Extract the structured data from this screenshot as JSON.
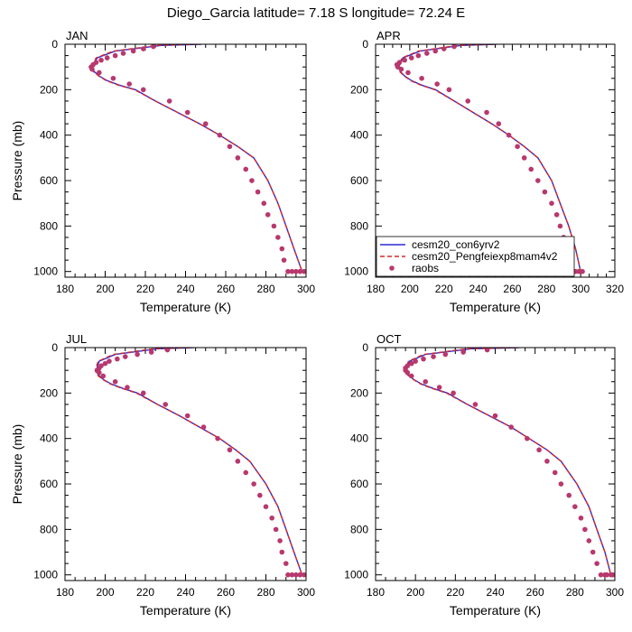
{
  "figure_title": "Diego_Garcia  latitude= 7.18 S longitude= 72.24 E",
  "colors": {
    "model1": "#2a2ad6",
    "model2": "#d62a2a",
    "obs": "#b8386e"
  },
  "chart_data": [
    {
      "type": "line",
      "panel_label": "JAN",
      "xlabel": "Temperature (K)",
      "ylabel": "Pressure (mb)",
      "xlim": [
        180,
        300
      ],
      "ylim": [
        0,
        1025
      ],
      "y_inverted": true,
      "xticks": [
        "180",
        "200",
        "220",
        "240",
        "260",
        "280",
        "300"
      ],
      "yticks": [
        "0",
        "200",
        "400",
        "600",
        "800",
        "1000"
      ],
      "series": [
        {
          "name": "cesm20_con6yrv2",
          "kind": "line",
          "color": "#2a2ad6",
          "x": [
            248,
            228,
            205,
            196,
            193.5,
            194.5,
            197,
            201,
            207,
            215,
            225,
            236,
            247,
            257,
            266,
            274,
            281,
            286,
            290,
            294,
            298
          ],
          "y": [
            0,
            5,
            30,
            60,
            100,
            120,
            140,
            160,
            180,
            200,
            250,
            300,
            350,
            400,
            450,
            500,
            600,
            700,
            800,
            900,
            1000
          ]
        },
        {
          "name": "cesm20_Pengfeiexp8mam4v2",
          "kind": "dashed",
          "color": "#d62a2a",
          "x": [
            246,
            226,
            204,
            195.5,
            193,
            194,
            196.8,
            200.5,
            206.5,
            214.5,
            225,
            236,
            247,
            257,
            266,
            274,
            281,
            286,
            290,
            294,
            298
          ],
          "y": [
            0,
            5,
            30,
            60,
            100,
            120,
            140,
            160,
            180,
            200,
            250,
            300,
            350,
            400,
            450,
            500,
            600,
            700,
            800,
            900,
            1000
          ]
        },
        {
          "name": "raobs",
          "kind": "points",
          "color": "#b8386e",
          "x": [
            224,
            219,
            214,
            209,
            205,
            201,
            198,
            195.5,
            194,
            193,
            193.5,
            197,
            204,
            212,
            219,
            232,
            241,
            250,
            257,
            262,
            266,
            270,
            273,
            276,
            279,
            281,
            284,
            286,
            288,
            289,
            291,
            293,
            295,
            297,
            299
          ],
          "y": [
            10,
            20,
            30,
            40,
            50,
            60,
            70,
            80,
            90,
            100,
            110,
            125,
            150,
            175,
            200,
            250,
            300,
            350,
            400,
            450,
            500,
            550,
            600,
            650,
            700,
            750,
            800,
            850,
            900,
            950,
            1000,
            1000,
            1000,
            1000,
            1000
          ]
        }
      ]
    },
    {
      "type": "line",
      "panel_label": "APR",
      "xlabel": "Temperature (K)",
      "ylabel": "",
      "xlim": [
        180,
        320
      ],
      "ylim": [
        0,
        1025
      ],
      "y_inverted": true,
      "xticks": [
        "180",
        "200",
        "220",
        "240",
        "260",
        "280",
        "300",
        "320"
      ],
      "yticks": [
        "0",
        "200",
        "400",
        "600",
        "800",
        "1000"
      ],
      "legend_placement": "bottom",
      "series": [
        {
          "name": "cesm20_con6yrv2",
          "kind": "line",
          "color": "#2a2ad6",
          "x": [
            251,
            230,
            206,
            196,
            193.5,
            194.5,
            197,
            201,
            207,
            215,
            226,
            237,
            248,
            258,
            267,
            275,
            283,
            288,
            293,
            297,
            300
          ],
          "y": [
            0,
            5,
            30,
            60,
            100,
            120,
            140,
            160,
            180,
            200,
            250,
            300,
            350,
            400,
            450,
            500,
            600,
            700,
            800,
            900,
            1000
          ]
        },
        {
          "name": "cesm20_Pengfeiexp8mam4v2",
          "kind": "dashed",
          "color": "#d62a2a",
          "x": [
            249,
            228,
            205,
            195.5,
            193,
            194,
            196.8,
            200.5,
            206.5,
            214.5,
            226,
            237,
            248,
            258,
            267,
            275,
            283,
            288,
            293,
            297,
            300
          ],
          "y": [
            0,
            5,
            30,
            60,
            100,
            120,
            140,
            160,
            180,
            200,
            250,
            300,
            350,
            400,
            450,
            500,
            600,
            700,
            800,
            900,
            1000
          ]
        },
        {
          "name": "raobs",
          "kind": "points",
          "color": "#b8386e",
          "x": [
            226,
            220,
            215,
            210,
            205,
            201,
            197,
            194,
            192.5,
            193,
            195,
            199,
            207,
            216,
            223,
            234,
            245,
            252,
            258,
            263,
            267,
            271,
            275,
            279,
            283,
            286,
            288,
            290,
            292,
            293,
            294,
            296,
            297,
            299,
            301
          ],
          "y": [
            10,
            20,
            30,
            40,
            50,
            60,
            70,
            80,
            90,
            100,
            110,
            125,
            150,
            175,
            200,
            250,
            300,
            350,
            400,
            450,
            500,
            550,
            600,
            650,
            700,
            750,
            800,
            850,
            900,
            950,
            1000,
            1000,
            1000,
            1000,
            1000
          ]
        }
      ]
    },
    {
      "type": "line",
      "panel_label": "JUL",
      "xlabel": "Temperature (K)",
      "ylabel": "Pressure (mb)",
      "xlim": [
        180,
        300
      ],
      "ylim": [
        0,
        1025
      ],
      "y_inverted": true,
      "xticks": [
        "180",
        "200",
        "220",
        "240",
        "260",
        "280",
        "300"
      ],
      "yticks": [
        "0",
        "200",
        "400",
        "600",
        "800",
        "1000"
      ],
      "series": [
        {
          "name": "cesm20_con6yrv2",
          "kind": "line",
          "color": "#2a2ad6",
          "x": [
            244,
            226,
            205,
            197,
            195.5,
            196.5,
            199,
            203,
            209,
            216,
            226,
            237,
            247,
            257,
            265,
            272,
            280,
            286,
            290,
            294,
            298
          ],
          "y": [
            0,
            5,
            30,
            60,
            100,
            120,
            140,
            160,
            180,
            200,
            250,
            300,
            350,
            400,
            450,
            500,
            600,
            700,
            800,
            900,
            1000
          ]
        },
        {
          "name": "cesm20_Pengfeiexp8mam4v2",
          "kind": "dashed",
          "color": "#d62a2a",
          "x": [
            242,
            224,
            204,
            196.5,
            195,
            196,
            198.8,
            202.5,
            208.5,
            215.5,
            226,
            237,
            247,
            257,
            265,
            272,
            280,
            286,
            290,
            294,
            298
          ],
          "y": [
            0,
            5,
            30,
            60,
            100,
            120,
            140,
            160,
            180,
            200,
            250,
            300,
            350,
            400,
            450,
            500,
            600,
            700,
            800,
            900,
            1000
          ]
        },
        {
          "name": "raobs",
          "kind": "points",
          "color": "#b8386e",
          "x": [
            231,
            223,
            216,
            210,
            206,
            202,
            200,
            198,
            197,
            196,
            197,
            199,
            205,
            211,
            219,
            230,
            241,
            249,
            256,
            262,
            266,
            270,
            274,
            277,
            280,
            283,
            285,
            287,
            288,
            290,
            291,
            293,
            295,
            297,
            299
          ],
          "y": [
            10,
            20,
            30,
            40,
            50,
            60,
            70,
            80,
            90,
            100,
            110,
            125,
            150,
            175,
            200,
            250,
            300,
            350,
            400,
            450,
            500,
            550,
            600,
            650,
            700,
            750,
            800,
            850,
            900,
            950,
            1000,
            1000,
            1000,
            1000,
            1000
          ]
        }
      ]
    },
    {
      "type": "line",
      "panel_label": "OCT",
      "xlabel": "Temperature (K)",
      "ylabel": "",
      "xlim": [
        180,
        300
      ],
      "ylim": [
        0,
        1025
      ],
      "y_inverted": true,
      "xticks": [
        "180",
        "200",
        "220",
        "240",
        "260",
        "280",
        "300"
      ],
      "yticks": [
        "0",
        "200",
        "400",
        "600",
        "800",
        "1000"
      ],
      "series": [
        {
          "name": "cesm20_con6yrv2",
          "kind": "line",
          "color": "#2a2ad6",
          "x": [
            252,
            228,
            205,
            197,
            195.5,
            196.5,
            199,
            203,
            209,
            216,
            226,
            237,
            248,
            257,
            266,
            273,
            281,
            287,
            291,
            295,
            298
          ],
          "y": [
            0,
            5,
            30,
            60,
            100,
            120,
            140,
            160,
            180,
            200,
            250,
            300,
            350,
            400,
            450,
            500,
            600,
            700,
            800,
            900,
            1000
          ]
        },
        {
          "name": "cesm20_Pengfeiexp8mam4v2",
          "kind": "dashed",
          "color": "#d62a2a",
          "x": [
            250,
            226,
            204,
            196.5,
            195,
            196,
            198.8,
            202.5,
            208.5,
            215.5,
            226,
            237,
            248,
            257,
            266,
            273,
            281,
            287,
            291,
            295,
            298
          ],
          "y": [
            0,
            5,
            30,
            60,
            100,
            120,
            140,
            160,
            180,
            200,
            250,
            300,
            350,
            400,
            450,
            500,
            600,
            700,
            800,
            900,
            1000
          ]
        },
        {
          "name": "raobs",
          "kind": "points",
          "color": "#b8386e",
          "x": [
            236,
            224,
            215,
            209,
            204,
            200,
            198,
            196,
            195,
            195,
            196,
            198,
            205,
            212,
            219,
            230,
            240,
            248,
            256,
            262,
            266,
            270,
            273,
            277,
            280,
            283,
            285,
            287,
            289,
            291,
            293,
            295,
            296,
            298,
            299
          ],
          "y": [
            10,
            20,
            30,
            40,
            50,
            60,
            70,
            80,
            90,
            100,
            110,
            125,
            150,
            175,
            200,
            250,
            300,
            350,
            400,
            450,
            500,
            550,
            600,
            650,
            700,
            750,
            800,
            850,
            900,
            950,
            1000,
            1000,
            1000,
            1000,
            1000
          ]
        }
      ]
    }
  ]
}
